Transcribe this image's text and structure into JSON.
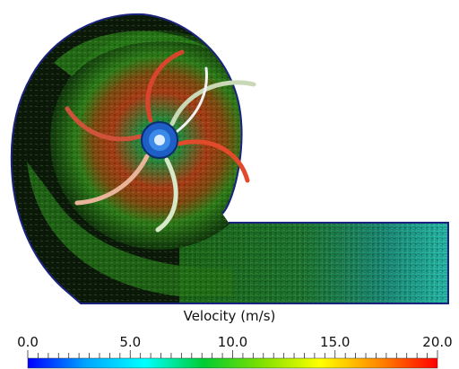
{
  "legend": {
    "title": "Velocity (m/s)",
    "min": 0,
    "max": 20,
    "tick_labels": [
      "0.0",
      "5.0",
      "10.0",
      "15.0",
      "20.0"
    ],
    "colormap": [
      "#0000ff",
      "#00a6ff",
      "#00ffff",
      "#00cc33",
      "#7fe000",
      "#ffff00",
      "#ff8800",
      "#ff0000"
    ]
  },
  "colors": {
    "outline": "#1a237e",
    "field_dark": "#0b1a08",
    "field_green": "#2f9a1c",
    "field_red": "#b8321a",
    "blade_fill": "#ffffff",
    "hub": "#1e5fc6"
  }
}
